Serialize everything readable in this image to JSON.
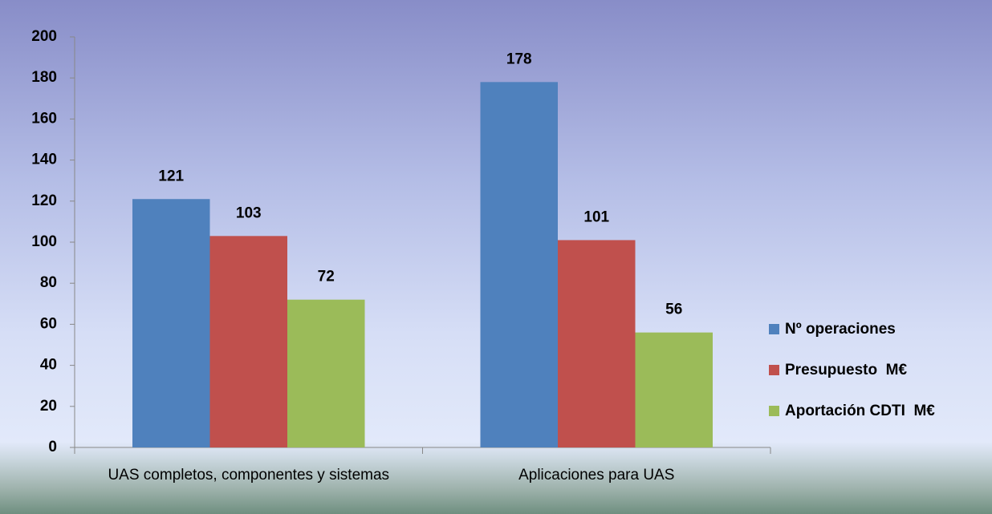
{
  "chart_data": {
    "type": "bar",
    "categories": [
      "UAS completos, componentes y sistemas",
      "Aplicaciones para UAS"
    ],
    "series": [
      {
        "name": "Nº operaciones",
        "color": "#4f81bd",
        "values": [
          121,
          178
        ]
      },
      {
        "name": "Presupuesto  M€",
        "color": "#c0504d",
        "values": [
          103,
          101
        ]
      },
      {
        "name": "Aportación CDTI  M€",
        "color": "#9bbb59",
        "values": [
          72,
          56
        ]
      }
    ],
    "ylim": [
      0,
      200
    ],
    "yticks": [
      0,
      20,
      40,
      60,
      80,
      100,
      120,
      140,
      160,
      180,
      200
    ],
    "legend": "right",
    "data_labels": true
  }
}
